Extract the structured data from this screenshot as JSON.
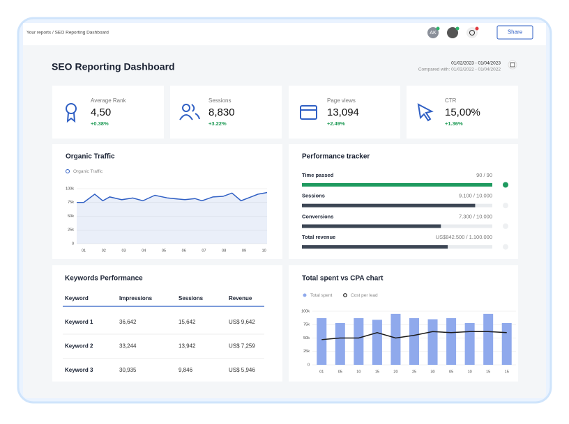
{
  "breadcrumb": "Your reports / SEO Reporting Dashboard",
  "user_initials": "AK",
  "share": "Share",
  "title": "SEO Reporting Dashboard",
  "date_range": "01/02/2023 - 01/04/2023",
  "compared": "Compared with: 01/02/2022 - 01/04/2022",
  "kpis": [
    {
      "label": "Average Rank",
      "value": "4,50",
      "change": "+0.38%"
    },
    {
      "label": "Sessions",
      "value": "8,830",
      "change": "+3.22%"
    },
    {
      "label": "Page views",
      "value": "13,094",
      "change": "+2.49%"
    },
    {
      "label": "CTR",
      "value": "15,00%",
      "change": "+1.36%"
    }
  ],
  "chart_data": [
    {
      "type": "line",
      "title": "Organic Traffic",
      "area": true,
      "grid": true,
      "x": [
        0.65,
        1,
        1.55,
        1.95,
        2.3,
        2.9,
        3.45,
        3.95,
        4.55,
        5.2,
        6.05,
        6.55,
        6.9,
        7.45,
        7.95,
        8.4,
        8.85,
        9.35,
        9.7,
        10.15
      ],
      "series": [
        {
          "name": "Organic Traffic",
          "color": "#2f5fc4",
          "values": [
            75000,
            75000,
            90000,
            78000,
            85000,
            80000,
            83000,
            78000,
            88000,
            83000,
            80000,
            82000,
            78000,
            85000,
            86000,
            92000,
            78000,
            85000,
            90000,
            93000
          ]
        }
      ],
      "xlim": [
        0.65,
        10.15
      ],
      "xticks": [
        {
          "value": 1,
          "label": "01"
        },
        {
          "value": 2,
          "label": "02"
        },
        {
          "value": 3,
          "label": "03"
        },
        {
          "value": 4,
          "label": "04"
        },
        {
          "value": 5,
          "label": "05"
        },
        {
          "value": 6,
          "label": "06"
        },
        {
          "value": 7,
          "label": "07"
        },
        {
          "value": 8,
          "label": "08"
        },
        {
          "value": 9,
          "label": "09"
        },
        10
      ],
      "ylim": [
        0,
        100000
      ],
      "yticks": [
        0,
        {
          "value": 25000,
          "label": "25k"
        },
        {
          "value": 50000,
          "label": "50k"
        },
        {
          "value": 75000,
          "label": "75k"
        },
        {
          "value": 100000,
          "label": "100k"
        }
      ]
    },
    {
      "type": "combo",
      "title": "Total spent vs CPA chart",
      "grid": true,
      "categories": [
        "01",
        "05",
        "10",
        "15",
        "20",
        "25",
        "30",
        "05",
        "10",
        "15",
        "15"
      ],
      "series": [
        {
          "name": "Total spent",
          "type": "bar",
          "color": "#8fa9ec",
          "values": [
            87000,
            78000,
            87000,
            84000,
            95000,
            87000,
            85000,
            87000,
            78000,
            95000,
            78000
          ]
        },
        {
          "name": "Cost per lead",
          "type": "line",
          "color": "#1a1a1a",
          "values": [
            47000,
            50000,
            50000,
            60000,
            50000,
            55000,
            62000,
            60000,
            62000,
            62000,
            60000
          ]
        }
      ],
      "ylim": [
        0,
        100000
      ],
      "yticks": [
        0,
        {
          "value": 25000,
          "label": "25k"
        },
        {
          "value": 50000,
          "label": "50k"
        },
        {
          "value": 75000,
          "label": "75k"
        },
        {
          "value": 100000,
          "label": "100k"
        }
      ]
    }
  ],
  "tracker": {
    "title": "Performance tracker",
    "items": [
      {
        "name": "Time passed",
        "value": 90,
        "target": 90,
        "label": "90 / 90"
      },
      {
        "name": "Sessions",
        "value": 9100,
        "target": 10000,
        "label": "9.100 / 10.000"
      },
      {
        "name": "Conversions",
        "value": 7300,
        "target": 10000,
        "label": "7.300 / 10.000"
      },
      {
        "name": "Total revenue",
        "value": 842500,
        "target": 1100000,
        "label": "US$842.500 / 1.100.000"
      }
    ]
  },
  "keywords": {
    "title": "Keywords Performance",
    "columns": [
      "Keyword",
      "Impressions",
      "Sessions",
      "Revenue"
    ],
    "rows": [
      [
        "Keyword 1",
        "36,642",
        "15,642",
        "US$ 9,642"
      ],
      [
        "Keyword 2",
        "33,244",
        "13,942",
        "US$ 7,259"
      ],
      [
        "Keyword 3",
        "30,935",
        "9,846",
        "US$ 5,946"
      ]
    ]
  }
}
